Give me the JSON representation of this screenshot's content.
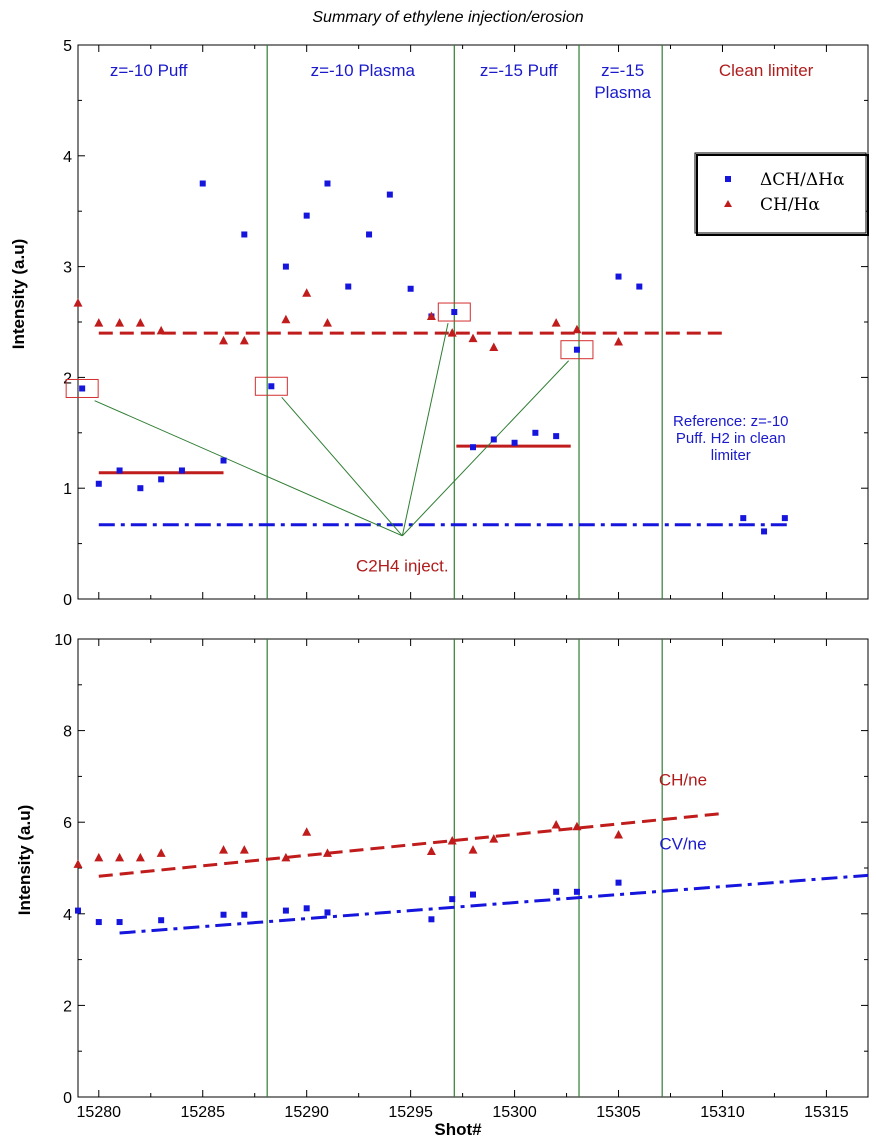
{
  "chart_data": [
    {
      "type": "scatter",
      "title": "Summary of ethylene injection/erosion",
      "xlabel": "",
      "ylabel": "Intensity (a.u)",
      "xlim": [
        15279,
        15317
      ],
      "ylim": [
        0,
        5
      ],
      "x_ticks": [
        "",
        "",
        "",
        "",
        "",
        "",
        "",
        ""
      ],
      "y_ticks": [
        "0",
        "1",
        "2",
        "3",
        "4",
        "5"
      ],
      "grid": false,
      "legend_position": "top-right",
      "vertical_lines_x": [
        15288.1,
        15297.1,
        15303.1,
        15307.1
      ],
      "region_labels": [
        {
          "lines": [
            "z=-10 Puff"
          ],
          "color": "#1a1acc",
          "x": 15282.4,
          "y": 4.72
        },
        {
          "lines": [
            "z=-10 Plasma"
          ],
          "color": "#1a1acc",
          "x": 15292.7,
          "y": 4.72
        },
        {
          "lines": [
            "z=-15 Puff"
          ],
          "color": "#1a1acc",
          "x": 15300.2,
          "y": 4.72
        },
        {
          "lines": [
            "z=-15",
            "Plasma"
          ],
          "color": "#1a1acc",
          "x": 15305.2,
          "y": 4.72
        },
        {
          "lines": [
            "Clean limiter"
          ],
          "color": "#b01c1c",
          "x": 15312.1,
          "y": 4.72
        }
      ],
      "reference_note": {
        "lines": [
          "Reference: z=-10",
          "Puff. H2 in clean",
          "limiter"
        ],
        "color": "#1a1acc",
        "x": 15310.4,
        "y": 1.56
      },
      "injection_label": {
        "text": "C2H4 inject.",
        "color": "#b01c1c",
        "x": 15294.6,
        "y": 0.25
      },
      "highlight_boxes": [
        {
          "x": 15279.2,
          "y": 1.9
        },
        {
          "x": 15288.3,
          "y": 1.92
        },
        {
          "x": 15297.1,
          "y": 2.59
        },
        {
          "x": 15303.0,
          "y": 2.25
        }
      ],
      "pointer_lines": {
        "target": {
          "x": 15294.6,
          "y": 0.57
        },
        "from": [
          {
            "x": 15279.8,
            "y": 1.79
          },
          {
            "x": 15288.8,
            "y": 1.82
          },
          {
            "x": 15296.8,
            "y": 2.49
          },
          {
            "x": 15302.6,
            "y": 2.15
          }
        ]
      },
      "series": [
        {
          "name": "ΔCH/ΔHα",
          "marker": "square",
          "color": "#1515dd",
          "points": [
            [
              15279.2,
              1.9
            ],
            [
              15280,
              1.04
            ],
            [
              15281,
              1.16
            ],
            [
              15282,
              1.0
            ],
            [
              15283,
              1.08
            ],
            [
              15284,
              1.16
            ],
            [
              15285,
              3.75
            ],
            [
              15286,
              1.25
            ],
            [
              15287,
              3.29
            ],
            [
              15288.3,
              1.92
            ],
            [
              15289,
              3.0
            ],
            [
              15290,
              3.46
            ],
            [
              15291,
              3.75
            ],
            [
              15292,
              2.82
            ],
            [
              15293,
              3.29
            ],
            [
              15294,
              3.65
            ],
            [
              15295,
              2.8
            ],
            [
              15296,
              2.55
            ],
            [
              15297.1,
              2.59
            ],
            [
              15298,
              1.37
            ],
            [
              15299,
              1.44
            ],
            [
              15300,
              1.41
            ],
            [
              15301,
              1.5
            ],
            [
              15302,
              1.47
            ],
            [
              15303,
              2.25
            ],
            [
              15305,
              2.91
            ],
            [
              15306,
              2.82
            ],
            [
              15311,
              0.73
            ],
            [
              15312,
              0.61
            ],
            [
              15313,
              0.73
            ]
          ]
        },
        {
          "name": "CH/Hα",
          "marker": "triangle",
          "color": "#c01c1c",
          "points": [
            [
              15279,
              2.67
            ],
            [
              15280,
              2.49
            ],
            [
              15281,
              2.49
            ],
            [
              15282,
              2.49
            ],
            [
              15283,
              2.42
            ],
            [
              15286,
              2.33
            ],
            [
              15287,
              2.33
            ],
            [
              15289,
              2.52
            ],
            [
              15290,
              2.76
            ],
            [
              15291,
              2.49
            ],
            [
              15296,
              2.55
            ],
            [
              15297,
              2.4
            ],
            [
              15298,
              2.35
            ],
            [
              15299,
              2.27
            ],
            [
              15302,
              2.49
            ],
            [
              15303,
              2.43
            ],
            [
              15305,
              2.32
            ]
          ]
        }
      ],
      "fit_lines": [
        {
          "style": "dashed",
          "color": "#c01c1c",
          "x": [
            15280,
            15310
          ],
          "y": [
            2.4,
            2.4
          ]
        },
        {
          "style": "solid",
          "color": "#c01c1c",
          "x": [
            15280,
            15286
          ],
          "y": [
            1.14,
            1.14
          ]
        },
        {
          "style": "solid",
          "color": "#c01c1c",
          "x": [
            15297.2,
            15302.7
          ],
          "y": [
            1.38,
            1.38
          ]
        },
        {
          "style": "dashdot",
          "color": "#1515dd",
          "x": [
            15280,
            15313.2
          ],
          "y": [
            0.67,
            0.67
          ]
        }
      ]
    },
    {
      "type": "scatter",
      "title": "",
      "xlabel": "Shot#",
      "ylabel": "Intensity (a.u)",
      "xlim": [
        15279,
        15317
      ],
      "ylim": [
        0,
        10
      ],
      "x_ticks": [
        "15280",
        "15285",
        "15290",
        "15295",
        "15300",
        "15305",
        "15310",
        "15315"
      ],
      "y_ticks": [
        "0",
        "2",
        "4",
        "6",
        "8",
        "10"
      ],
      "grid": false,
      "vertical_lines_x": [
        15288.1,
        15297.1,
        15303.1,
        15307.1
      ],
      "series_labels": [
        {
          "text": "CH/ne",
          "color": "#b01c1c",
          "x": 15308.1,
          "y": 6.8
        },
        {
          "text": "CV/ne",
          "color": "#1a1acc",
          "x": 15308.1,
          "y": 5.4
        }
      ],
      "series": [
        {
          "name": "CH/ne",
          "marker": "triangle",
          "color": "#c01c1c",
          "points": [
            [
              15279,
              5.08
            ],
            [
              15280,
              5.22
            ],
            [
              15281,
              5.22
            ],
            [
              15282,
              5.22
            ],
            [
              15283,
              5.32
            ],
            [
              15286,
              5.39
            ],
            [
              15287,
              5.39
            ],
            [
              15289,
              5.22
            ],
            [
              15290,
              5.78
            ],
            [
              15291,
              5.32
            ],
            [
              15296,
              5.36
            ],
            [
              15297,
              5.59
            ],
            [
              15298,
              5.39
            ],
            [
              15299,
              5.63
            ],
            [
              15302,
              5.94
            ],
            [
              15303,
              5.9
            ],
            [
              15305,
              5.72
            ]
          ]
        },
        {
          "name": "CV/ne",
          "marker": "square",
          "color": "#1515dd",
          "points": [
            [
              15279,
              4.07
            ],
            [
              15280,
              3.82
            ],
            [
              15281,
              3.82
            ],
            [
              15283,
              3.86
            ],
            [
              15286,
              3.98
            ],
            [
              15287,
              3.98
            ],
            [
              15289,
              4.07
            ],
            [
              15290,
              4.12
            ],
            [
              15291,
              4.03
            ],
            [
              15296,
              3.88
            ],
            [
              15297,
              4.32
            ],
            [
              15298,
              4.42
            ],
            [
              15302,
              4.48
            ],
            [
              15303,
              4.48
            ],
            [
              15305,
              4.68
            ]
          ]
        }
      ],
      "fit_lines": [
        {
          "style": "dashed",
          "color": "#c01c1c",
          "x": [
            15280,
            15310
          ],
          "y": [
            4.82,
            6.19
          ]
        },
        {
          "style": "dashdot",
          "color": "#1515dd",
          "x": [
            15281,
            15317
          ],
          "y": [
            3.58,
            4.84
          ]
        }
      ]
    }
  ]
}
